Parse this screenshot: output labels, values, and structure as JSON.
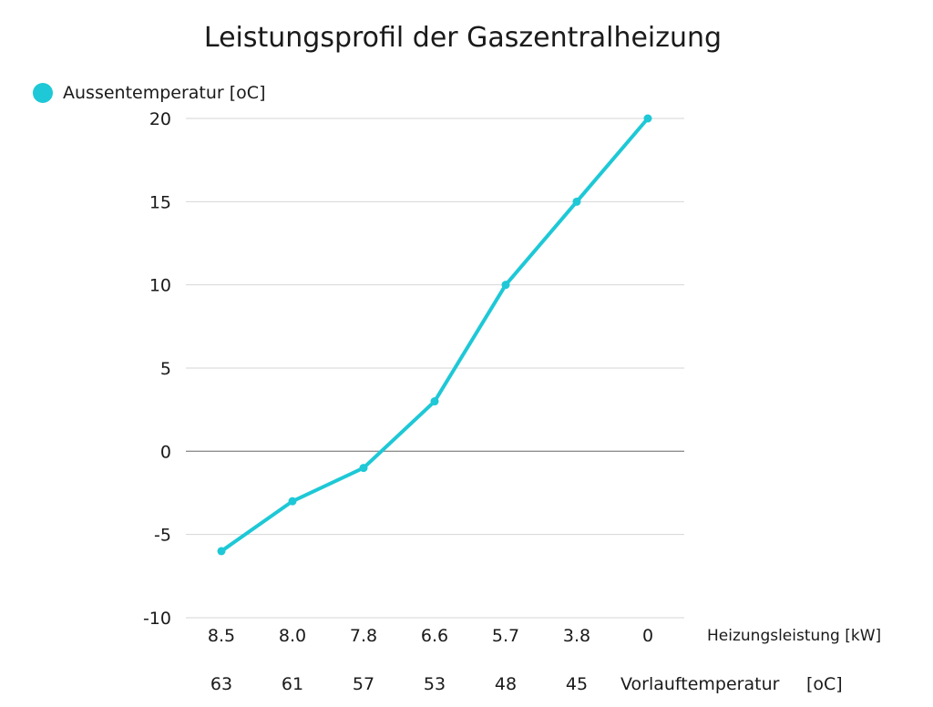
{
  "chart_data": {
    "type": "line",
    "title": "Leistungsprofil der Gaszentralheizung",
    "ylim": [
      -10,
      20
    ],
    "yticks": [
      "20",
      "15",
      "10",
      "5",
      "0",
      "-5",
      "-10"
    ],
    "ytick_values": [
      20,
      15,
      10,
      5,
      0,
      -5,
      -10
    ],
    "grid": true,
    "legend_position": "top-left",
    "color": "#1ec8d6",
    "categories": [
      "8.5",
      "8.0",
      "7.8",
      "6.6",
      "5.7",
      "3.8",
      "0"
    ],
    "series": [
      {
        "name": "Aussentemperatur [oC]",
        "values": [
          -6,
          -3,
          -1,
          3,
          10,
          15,
          20
        ]
      }
    ],
    "xlabel": "Heizungsleistung [kW]",
    "secondary_x": {
      "categories": [
        "63",
        "61",
        "57",
        "53",
        "48",
        "45"
      ],
      "label": "Vorlauftemperatur",
      "unit": "[oC]"
    }
  }
}
